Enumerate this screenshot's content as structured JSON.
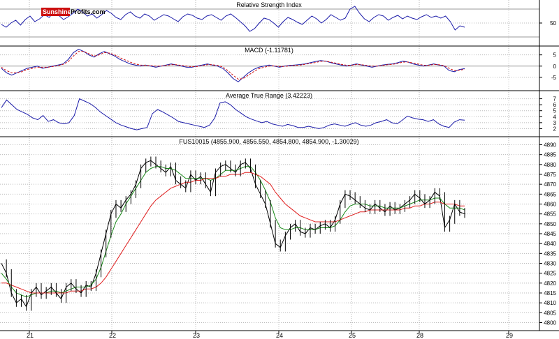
{
  "logo": {
    "part1": "Sunshine",
    "part2": "Profits.com"
  },
  "colors": {
    "price": "#000000",
    "ma_fast": "#1a8a1a",
    "ma_slow": "#e02020",
    "indicator": "#1a1aa8",
    "signal": "#d01010",
    "grid": "#bbbbbb",
    "logo_red": "#cc1010"
  },
  "chart_data": [
    {
      "type": "line",
      "title": "Relative Strength Index",
      "ylim": [
        20,
        80
      ],
      "yticks": [
        50
      ],
      "grid": true,
      "series": [
        {
          "values": [
            48,
            44,
            50,
            54,
            47,
            55,
            60,
            52,
            56,
            62,
            58,
            66,
            61,
            55,
            59,
            64,
            70,
            66,
            60,
            63,
            57,
            62,
            68,
            64,
            58,
            55,
            62,
            66,
            60,
            57,
            63,
            60,
            54,
            58,
            62,
            60,
            56,
            52,
            59,
            63,
            61,
            57,
            55,
            60,
            62,
            58,
            54,
            60,
            63,
            58,
            52,
            46,
            38,
            42,
            50,
            57,
            55,
            50,
            44,
            52,
            58,
            55,
            51,
            48,
            54,
            60,
            56,
            50,
            55,
            62,
            58,
            54,
            57,
            70,
            74,
            64,
            56,
            52,
            58,
            62,
            60,
            54,
            58,
            61,
            56,
            60,
            57,
            55,
            59,
            62,
            58,
            60,
            57,
            60,
            52,
            40,
            46,
            44
          ]
        }
      ]
    },
    {
      "type": "line",
      "title": "MACD (-1.11781)",
      "ylim": [
        -10,
        8
      ],
      "yticks": [
        5,
        0,
        -5
      ],
      "grid": true,
      "series": [
        {
          "values": [
            -1,
            -3,
            -4,
            -3,
            -2,
            -1,
            -0.5,
            0,
            -1,
            -0.5,
            0,
            0.5,
            1,
            3,
            6,
            7.5,
            6.5,
            5,
            4,
            5.5,
            6.5,
            5.5,
            4.5,
            3,
            2,
            1,
            0.5,
            0,
            0.5,
            0,
            -0.5,
            0,
            0.5,
            1,
            0.5,
            0,
            -0.5,
            -0.5,
            0,
            0.5,
            1,
            0.5,
            0,
            -1,
            -3,
            -5.5,
            -7,
            -5,
            -3,
            -1.5,
            -0.5,
            0,
            0.5,
            0,
            -0.5,
            0,
            0.3,
            0.5,
            0.7,
            1,
            1.5,
            2,
            2.5,
            2.2,
            1.5,
            1,
            0.5,
            0,
            0.5,
            1,
            0.5,
            0,
            -0.5,
            0,
            0.5,
            0.8,
            1,
            1.5,
            2.2,
            1.8,
            1,
            0.5,
            0,
            0.5,
            1,
            0.5,
            0,
            -2,
            -2.5,
            -1.5,
            -1.12
          ]
        },
        {
          "values": [
            -0.5,
            -2,
            -3,
            -3,
            -2.5,
            -1.5,
            -1,
            -0.5,
            -0.5,
            -0.5,
            -0.2,
            0.2,
            0.8,
            2,
            4.5,
            6.5,
            6.5,
            5.5,
            4.5,
            5,
            6,
            5.8,
            5,
            3.8,
            2.8,
            1.8,
            1,
            0.5,
            0.4,
            0.2,
            0,
            0,
            0.3,
            0.6,
            0.6,
            0.3,
            0,
            -0.3,
            -0.2,
            0.2,
            0.6,
            0.6,
            0.3,
            -0.4,
            -2,
            -4,
            -5.8,
            -5.5,
            -4,
            -2.5,
            -1.2,
            -0.5,
            0,
            0.1,
            -0.2,
            -0.1,
            0.1,
            0.3,
            0.5,
            0.8,
            1.2,
            1.6,
            2.1,
            2.2,
            1.8,
            1.3,
            0.8,
            0.4,
            0.4,
            0.7,
            0.6,
            0.3,
            0,
            0,
            0.3,
            0.6,
            0.8,
            1.2,
            1.8,
            1.8,
            1.4,
            0.9,
            0.4,
            0.4,
            0.7,
            0.6,
            0.2,
            -1,
            -2,
            -1.8,
            -1.4
          ]
        }
      ]
    },
    {
      "type": "line",
      "title": "Average True Range (3.42223)",
      "ylim": [
        1,
        8
      ],
      "yticks": [
        7,
        6,
        5,
        4,
        3,
        2
      ],
      "grid": true,
      "series": [
        {
          "values": [
            5.5,
            6.8,
            6,
            5.2,
            4.8,
            4.4,
            3.8,
            3.5,
            4.2,
            3.2,
            3.5,
            3,
            2.8,
            3,
            4.2,
            7,
            6.6,
            6.2,
            5.6,
            4.8,
            4.2,
            3.6,
            3,
            2.6,
            2.3,
            2,
            1.8,
            2,
            2.2,
            4.5,
            5.2,
            4.8,
            4.3,
            3.8,
            3.2,
            3,
            2.8,
            2.6,
            2.4,
            2.2,
            2.6,
            3.8,
            6.3,
            6.5,
            6,
            5.2,
            4.6,
            4,
            3.6,
            3.3,
            3,
            3.2,
            2.8,
            2.6,
            2.4,
            2.7,
            2.5,
            2.2,
            2.2,
            2.4,
            2.2,
            2,
            2.2,
            2.6,
            2.8,
            2.6,
            2.4,
            2.7,
            3,
            2.6,
            2.4,
            2.6,
            3,
            3.2,
            3.5,
            3,
            2.8,
            3.4,
            4.1,
            3.8,
            3.6,
            3.5,
            3.2,
            3.5,
            2.8,
            2.4,
            2.2,
            3.1,
            3.5,
            3.42
          ]
        }
      ]
    },
    {
      "type": "line",
      "title": "FUS10015 (4855.900, 4856.550, 4854.800, 4854.900, -1.30029)",
      "ylim": [
        4797,
        4893
      ],
      "yticks": [
        4890,
        4885,
        4880,
        4875,
        4870,
        4865,
        4860,
        4855,
        4850,
        4845,
        4840,
        4835,
        4830,
        4825,
        4820,
        4815,
        4810,
        4805,
        4800
      ],
      "x_labels": [
        "21",
        "22",
        "23",
        "24",
        "25",
        "28",
        "29"
      ],
      "grid": true,
      "series": [
        {
          "values": [
            4830,
            4825,
            4815,
            4810,
            4812,
            4808,
            4815,
            4818,
            4814,
            4816,
            4818,
            4815,
            4812,
            4818,
            4820,
            4817,
            4815,
            4819,
            4818,
            4825,
            4835,
            4845,
            4855,
            4860,
            4858,
            4862,
            4865,
            4870,
            4878,
            4881,
            4882,
            4880,
            4878,
            4876,
            4879,
            4872,
            4870,
            4868,
            4875,
            4872,
            4874,
            4870,
            4866,
            4876,
            4879,
            4880,
            4878,
            4876,
            4880,
            4881,
            4878,
            4870,
            4865,
            4860,
            4850,
            4840,
            4838,
            4844,
            4848,
            4850,
            4846,
            4845,
            4848,
            4847,
            4849,
            4850,
            4848,
            4852,
            4860,
            4865,
            4864,
            4862,
            4860,
            4858,
            4857,
            4860,
            4858,
            4856,
            4859,
            4857,
            4858,
            4860,
            4862,
            4865,
            4863,
            4860,
            4862,
            4866,
            4864,
            4848,
            4852,
            4860,
            4856,
            4855
          ]
        },
        {
          "values": [
            4825,
            4822,
            4818,
            4815,
            4814,
            4813,
            4814,
            4815,
            4815,
            4815,
            4816,
            4816,
            4815,
            4816,
            4817,
            4818,
            4818,
            4818,
            4819,
            4822,
            4828,
            4836,
            4844,
            4851,
            4855,
            4860,
            4864,
            4868,
            4872,
            4876,
            4878,
            4879,
            4879,
            4878,
            4878,
            4877,
            4875,
            4873,
            4873,
            4873,
            4873,
            4873,
            4872,
            4873,
            4875,
            4877,
            4877,
            4877,
            4878,
            4879,
            4879,
            4876,
            4872,
            4867,
            4861,
            4853,
            4848,
            4847,
            4847,
            4848,
            4848,
            4847,
            4847,
            4847,
            4848,
            4848,
            4848,
            4849,
            4852,
            4856,
            4859,
            4860,
            4860,
            4860,
            4859,
            4859,
            4859,
            4858,
            4858,
            4858,
            4858,
            4859,
            4860,
            4861,
            4862,
            4862,
            4862,
            4863,
            4863,
            4860,
            4858,
            4858,
            4858,
            4857
          ]
        },
        {
          "values": [
            4820,
            4820,
            4819,
            4818,
            4817,
            4816,
            4815,
            4815,
            4815,
            4815,
            4815,
            4815,
            4815,
            4815,
            4816,
            4816,
            4816,
            4817,
            4817,
            4818,
            4820,
            4823,
            4827,
            4831,
            4835,
            4839,
            4843,
            4847,
            4851,
            4855,
            4859,
            4862,
            4864,
            4866,
            4868,
            4869,
            4870,
            4871,
            4871,
            4872,
            4872,
            4873,
            4873,
            4873,
            4874,
            4874,
            4875,
            4875,
            4875,
            4876,
            4876,
            4875,
            4874,
            4872,
            4870,
            4866,
            4863,
            4860,
            4858,
            4856,
            4854,
            4853,
            4852,
            4851,
            4851,
            4851,
            4851,
            4851,
            4852,
            4853,
            4854,
            4855,
            4856,
            4856,
            4857,
            4857,
            4857,
            4857,
            4857,
            4857,
            4857,
            4858,
            4858,
            4859,
            4859,
            4860,
            4860,
            4861,
            4861,
            4860,
            4860,
            4860,
            4859,
            4859
          ]
        }
      ]
    }
  ]
}
